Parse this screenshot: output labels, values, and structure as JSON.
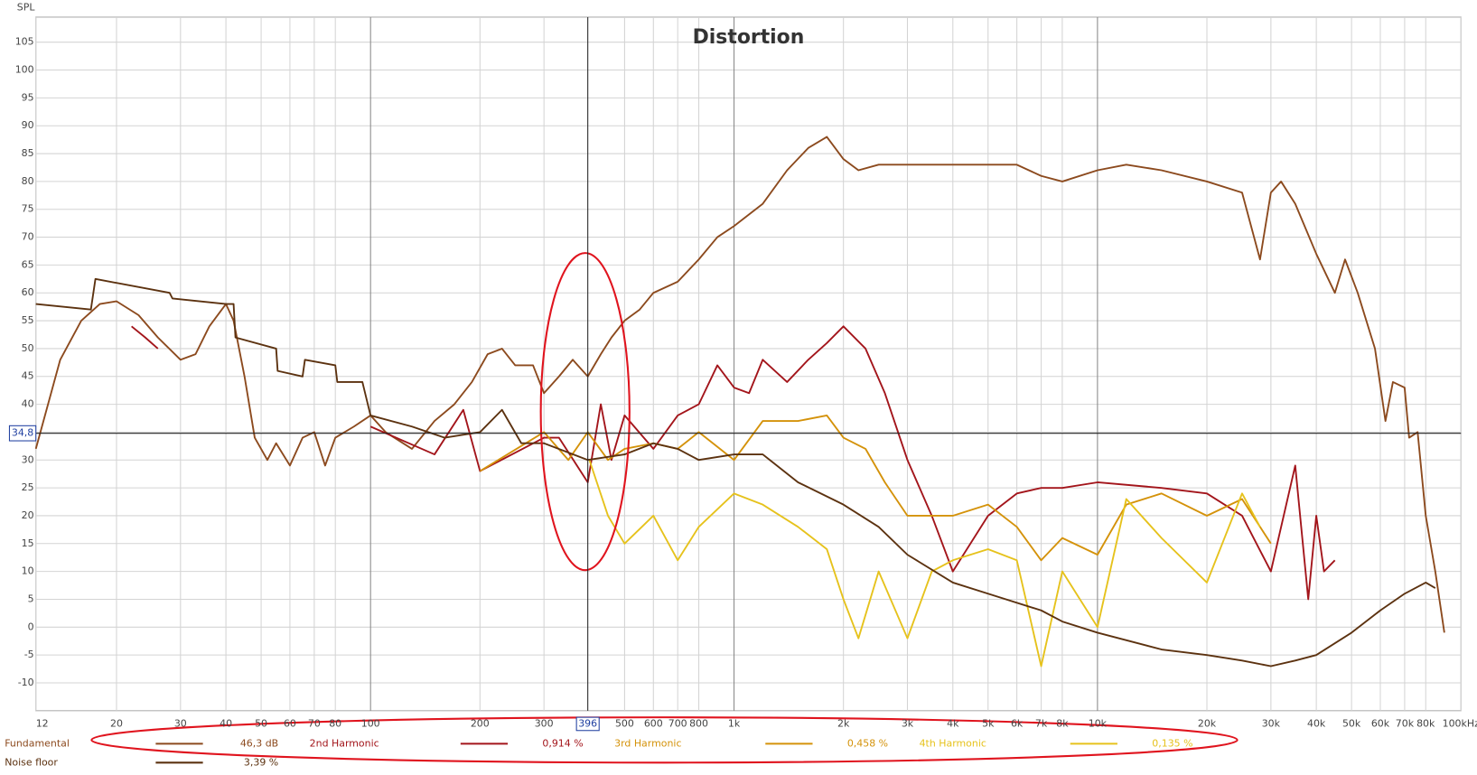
{
  "chart_data": {
    "type": "line",
    "title": "Distortion",
    "ylabel": "SPL",
    "xscale": "log",
    "grid": true,
    "xlim": [
      12,
      100000
    ],
    "ylim": [
      -15,
      109.5
    ],
    "yticks": [
      -10,
      -5,
      0,
      5,
      10,
      15,
      20,
      25,
      30,
      35,
      40,
      45,
      50,
      55,
      60,
      65,
      70,
      75,
      80,
      85,
      90,
      95,
      100,
      105
    ],
    "xticks": [
      12,
      20,
      30,
      40,
      50,
      60,
      70,
      80,
      100,
      200,
      300,
      500,
      600,
      700,
      800,
      {
        "value": 1000,
        "label": "1k"
      },
      {
        "value": 2000,
        "label": "2k"
      },
      {
        "value": 3000,
        "label": "3k"
      },
      {
        "value": 4000,
        "label": "4k"
      },
      {
        "value": 5000,
        "label": "5k"
      },
      {
        "value": 6000,
        "label": "6k"
      },
      {
        "value": 7000,
        "label": "7k"
      },
      {
        "value": 8000,
        "label": "8k"
      },
      {
        "value": 10000,
        "label": "10k"
      },
      {
        "value": 20000,
        "label": "20k"
      },
      {
        "value": 30000,
        "label": "30k"
      },
      {
        "value": 40000,
        "label": "40k"
      },
      {
        "value": 50000,
        "label": "50k"
      },
      {
        "value": 60000,
        "label": "60k"
      },
      {
        "value": 70000,
        "label": "70k"
      },
      {
        "value": 80000,
        "label": "80k"
      },
      {
        "value": 100000,
        "label": "100kHz"
      }
    ],
    "cursor": {
      "x": 396,
      "y": {
        "value": 34.8,
        "label": "34,8"
      }
    },
    "series": [
      {
        "name": "Fundamental",
        "legend_value": "46,3 dB",
        "color": "#8c4a1e",
        "x": [
          12,
          14,
          16,
          18,
          20,
          23,
          26,
          30,
          33,
          36,
          40,
          42,
          45,
          48,
          52,
          55,
          60,
          65,
          70,
          75,
          80,
          90,
          100,
          110,
          130,
          150,
          170,
          190,
          210,
          230,
          250,
          280,
          300,
          330,
          360,
          396,
          430,
          460,
          500,
          550,
          600,
          700,
          800,
          900,
          1000,
          1200,
          1400,
          1600,
          1800,
          2000,
          2200,
          2500,
          3000,
          4000,
          5000,
          6000,
          7000,
          8000,
          10000,
          12000,
          15000,
          20000,
          25000,
          28000,
          30000,
          32000,
          35000,
          40000,
          45000,
          48000,
          52000,
          58000,
          62000,
          65000,
          70000,
          72000,
          76000,
          80000,
          85000,
          90000
        ],
        "values": [
          32,
          48,
          55,
          58,
          58.5,
          56,
          52,
          48,
          49,
          54,
          58,
          55,
          45,
          34,
          30,
          33,
          29,
          34,
          35,
          29,
          34,
          36,
          38,
          35,
          32,
          37,
          40,
          44,
          49,
          50,
          47,
          47,
          42,
          45,
          48,
          45,
          49,
          52,
          55,
          57,
          60,
          62,
          66,
          70,
          72,
          76,
          82,
          86,
          88,
          84,
          82,
          83,
          83,
          83,
          83,
          83,
          81,
          80,
          82,
          83,
          82,
          80,
          78,
          66,
          78,
          80,
          76,
          67,
          60,
          66,
          60,
          50,
          37,
          44,
          43,
          34,
          35,
          20,
          10,
          -1
        ]
      },
      {
        "name": "2nd Harmonic",
        "legend_value": "0,914 %",
        "color": "#a3151b",
        "x": [
          22,
          24,
          26,
          60,
          100,
          150,
          180,
          200,
          300,
          330,
          396,
          430,
          460,
          500,
          600,
          700,
          800,
          900,
          1000,
          1100,
          1200,
          1400,
          1600,
          1800,
          2000,
          2300,
          2600,
          3000,
          3500,
          4000,
          5000,
          6000,
          7000,
          8000,
          10000,
          15000,
          20000,
          25000,
          30000,
          35000,
          38000,
          40000,
          42000,
          45000
        ],
        "values": [
          54,
          52,
          50,
          null,
          36,
          31,
          39,
          28,
          34,
          34,
          26,
          40,
          30,
          38,
          32,
          38,
          40,
          47,
          43,
          42,
          48,
          44,
          48,
          51,
          54,
          50,
          42,
          30,
          20,
          10,
          20,
          24,
          25,
          25,
          26,
          25,
          24,
          20,
          10,
          29,
          5,
          20,
          10,
          12
        ]
      },
      {
        "name": "3rd Harmonic",
        "legend_value": "0,458 %",
        "color": "#d4920a",
        "x": [
          200,
          300,
          350,
          396,
          450,
          500,
          600,
          700,
          800,
          1000,
          1200,
          1500,
          1800,
          2000,
          2300,
          2600,
          3000,
          4000,
          5000,
          6000,
          7000,
          8000,
          10000,
          12000,
          15000,
          20000,
          25000,
          30000
        ],
        "values": [
          28,
          35,
          30,
          35,
          30,
          32,
          33,
          32,
          35,
          30,
          37,
          37,
          38,
          34,
          32,
          26,
          20,
          20,
          22,
          18,
          12,
          16,
          13,
          22,
          24,
          20,
          23,
          15
        ]
      },
      {
        "name": "4th Harmonic",
        "legend_value": "0,135 %",
        "color": "#e6c21c",
        "x": [
          400,
          450,
          500,
          600,
          700,
          800,
          1000,
          1200,
          1500,
          1800,
          2000,
          2200,
          2500,
          3000,
          3500,
          4000,
          5000,
          6000,
          7000,
          8000,
          10000,
          12000,
          15000,
          20000,
          25000,
          28000
        ],
        "values": [
          30,
          20,
          15,
          20,
          12,
          18,
          24,
          22,
          18,
          14,
          5,
          -2,
          10,
          -2,
          10,
          12,
          14,
          12,
          -7,
          10,
          0,
          23,
          16,
          8,
          24,
          18
        ]
      },
      {
        "name": "Noise floor",
        "legend_value": "3,39 %",
        "color": "#5c3210",
        "x": [
          12,
          17,
          17.5,
          28,
          28.5,
          40,
          42,
          42.5,
          55,
          55.5,
          65,
          66,
          80,
          81,
          95,
          100,
          130,
          160,
          200,
          230,
          260,
          300,
          396,
          500,
          600,
          700,
          800,
          1000,
          1200,
          1500,
          2000,
          2500,
          3000,
          4000,
          5000,
          7000,
          8000,
          10000,
          15000,
          20000,
          25000,
          30000,
          35000,
          40000,
          50000,
          60000,
          70000,
          80000,
          85000
        ],
        "values": [
          58,
          57,
          62.5,
          60,
          59,
          58,
          58,
          52,
          50,
          46,
          45,
          48,
          47,
          44,
          44,
          38,
          36,
          34,
          35,
          39,
          33,
          33,
          30,
          31,
          33,
          32,
          30,
          31,
          31,
          26,
          22,
          18,
          13,
          8,
          6,
          3,
          1,
          -1,
          -4,
          -5,
          -6,
          -7,
          -6,
          -5,
          -1,
          3,
          6,
          8,
          7
        ]
      }
    ]
  }
}
